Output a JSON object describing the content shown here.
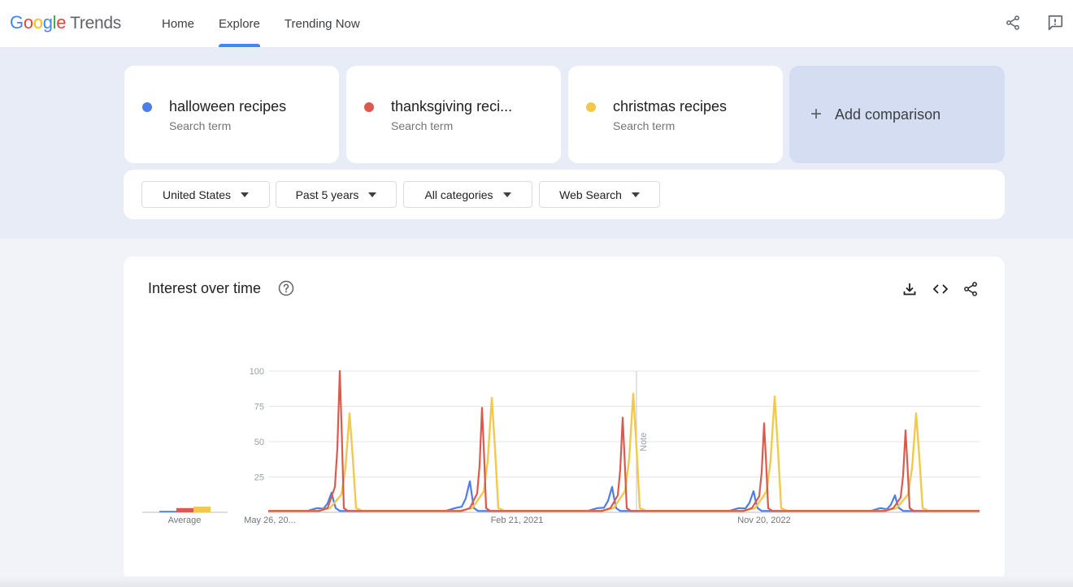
{
  "header": {
    "logo": {
      "letters": [
        "G",
        "o",
        "o",
        "g",
        "l",
        "e"
      ],
      "colors": [
        "#4285f4",
        "#ea4335",
        "#fbbc05",
        "#4285f4",
        "#34a853",
        "#ea4335"
      ],
      "product": "Trends"
    },
    "nav": [
      {
        "label": "Home",
        "active": false
      },
      {
        "label": "Explore",
        "active": true
      },
      {
        "label": "Trending Now",
        "active": false
      }
    ],
    "icons": [
      "share-icon",
      "feedback-icon"
    ]
  },
  "terms": [
    {
      "name": "halloween recipes",
      "sub": "Search term",
      "color": "#4f7de8"
    },
    {
      "name": "thanksgiving reci...",
      "sub": "Search term",
      "color": "#db5a4e"
    },
    {
      "name": "christmas recipes",
      "sub": "Search term",
      "color": "#f2c94c"
    }
  ],
  "add_comparison": {
    "label": "Add comparison",
    "icon": "plus-icon"
  },
  "filters": [
    {
      "label": "United States"
    },
    {
      "label": "Past 5 years"
    },
    {
      "label": "All categories"
    },
    {
      "label": "Web Search"
    }
  ],
  "interest": {
    "title": "Interest over time",
    "actions": [
      "download-icon",
      "embed-icon",
      "share-icon"
    ],
    "average_label": "Average",
    "note_label": "Note"
  },
  "chart_data": {
    "type": "line",
    "title": "Interest over time",
    "ylim": [
      0,
      100
    ],
    "yticks": [
      100,
      75,
      50,
      25
    ],
    "x_tick_labels": [
      "May 26, 20...",
      "Feb 21, 2021",
      "Nov 20, 2022"
    ],
    "grid": true,
    "averages": [
      {
        "name": "halloween recipes",
        "value": 1
      },
      {
        "name": "thanksgiving reci...",
        "value": 3
      },
      {
        "name": "christmas recipes",
        "value": 4
      }
    ],
    "peaks": {
      "halloween recipes": [
        14,
        22,
        18,
        15,
        12
      ],
      "thanksgiving reci...": [
        100,
        74,
        67,
        63,
        58
      ],
      "christmas recipes": [
        70,
        81,
        84,
        82,
        70
      ]
    }
  }
}
